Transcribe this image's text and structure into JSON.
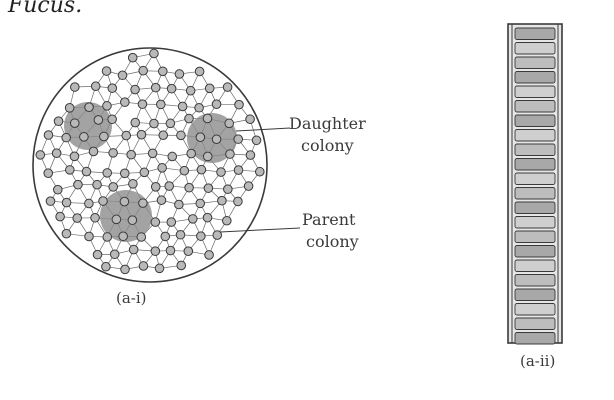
{
  "heading": "Fucus.",
  "labels": {
    "daughter_colony_line1": "Daughter",
    "daughter_colony_line2": "colony",
    "parent_colony_line1": "Parent",
    "parent_colony_line2": "colony"
  },
  "captions": {
    "volvox": "(a-i)",
    "filament": "(a-ii)"
  },
  "colors": {
    "ink": "#3a3a3a",
    "cell_fill": "#b9b9b9",
    "daughter_fill": "#8c8c8c",
    "background": "#ffffff"
  }
}
